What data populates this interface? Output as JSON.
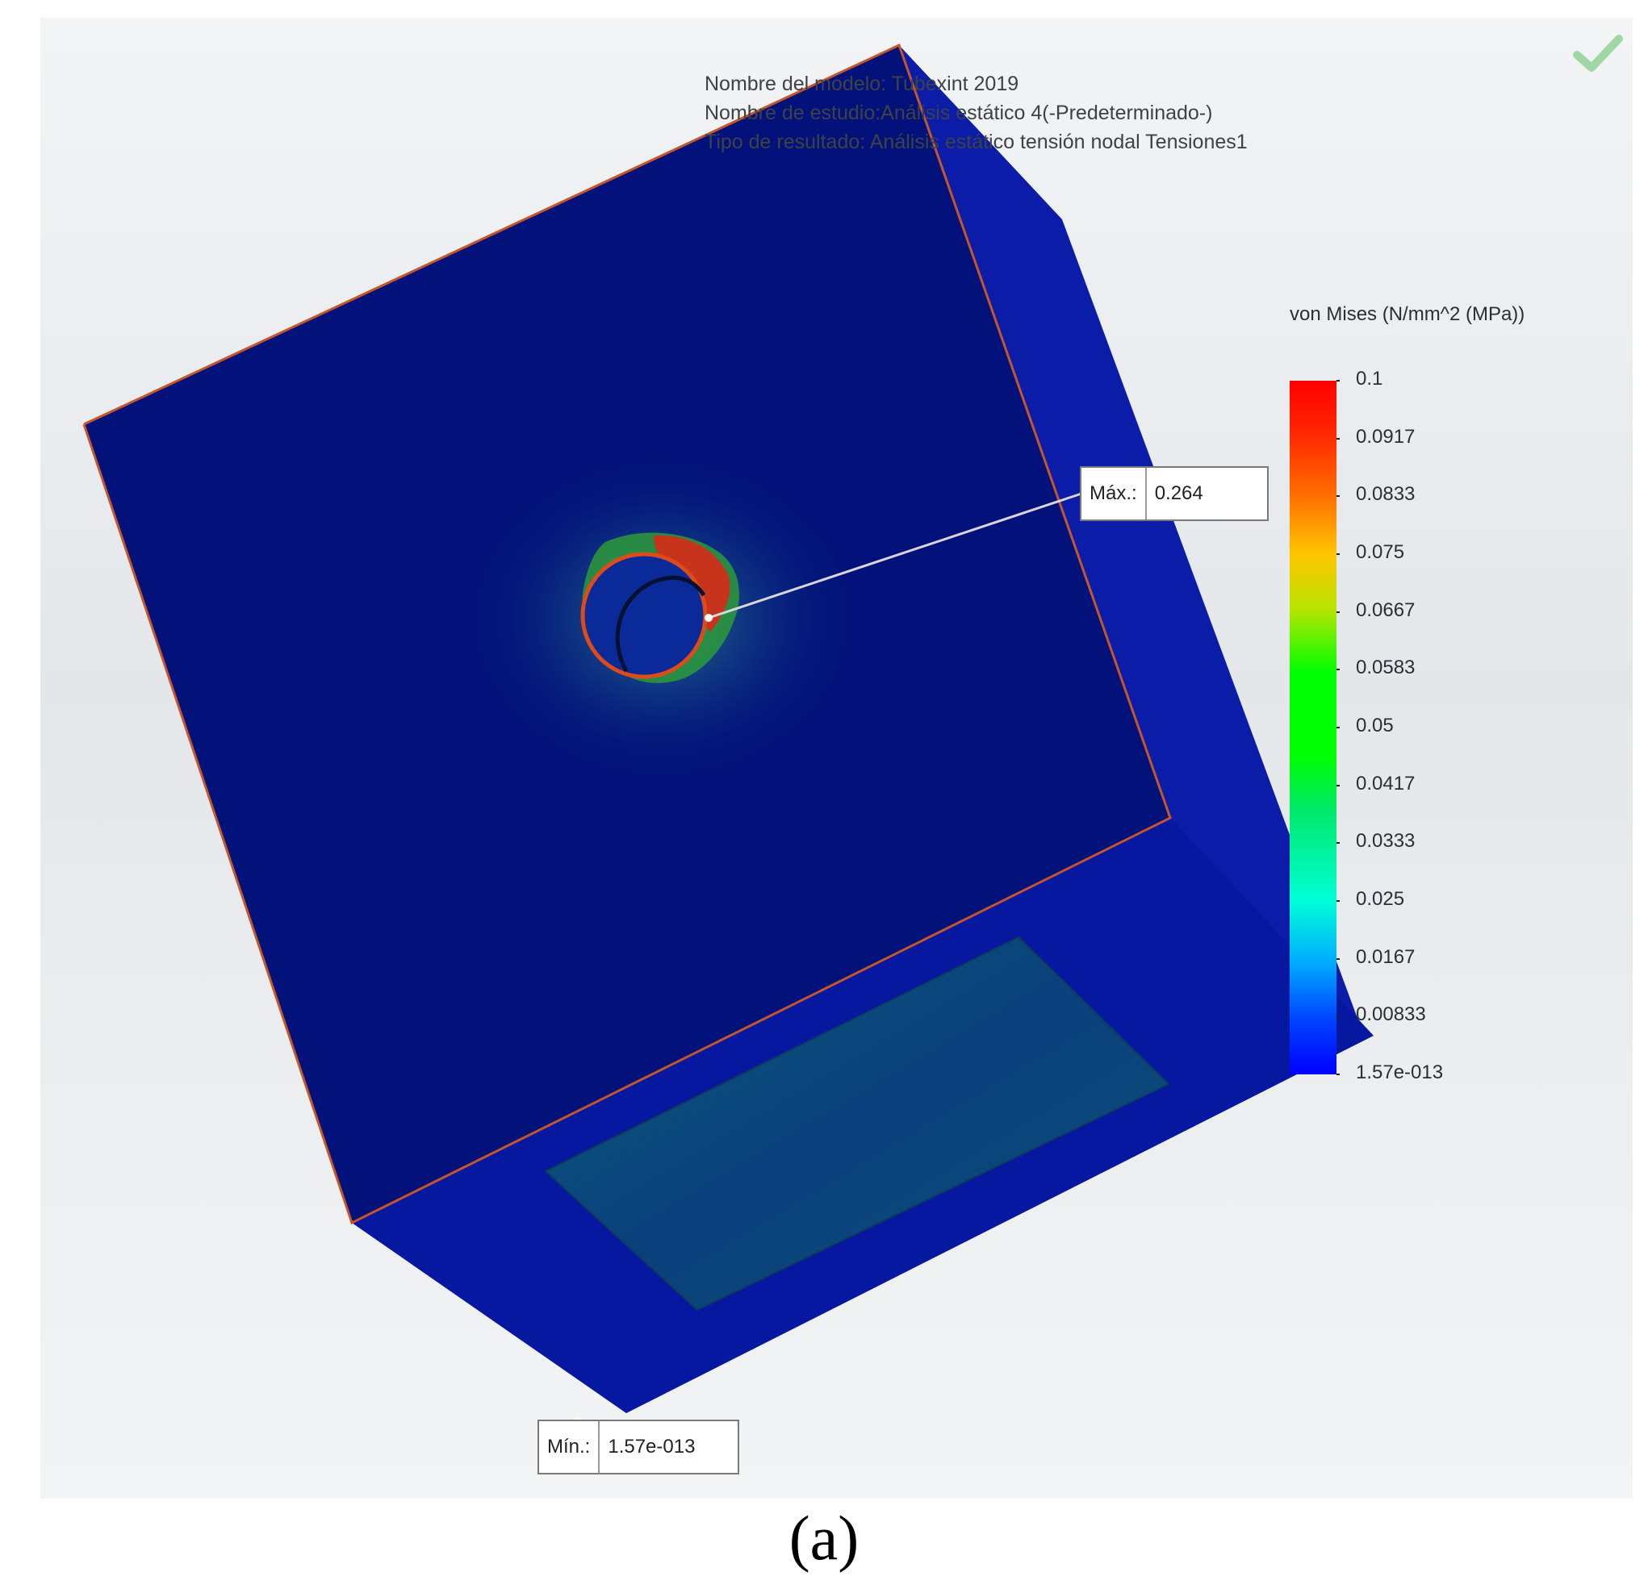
{
  "header": {
    "model_name": "Nombre del modelo: Tubexint 2019",
    "study_name": "Nombre de estudio:Análisis estático 4(-Predeterminado-)",
    "result_type": "Tipo de resultado: Análisis estático tensión nodal Tensiones1"
  },
  "status_icon": "check-icon",
  "legend": {
    "title": "von Mises (N/mm^2 (MPa))",
    "ticks": [
      "0.1",
      "0.0917",
      "0.0833",
      "0.075",
      "0.0667",
      "0.0583",
      "0.05",
      "0.0417",
      "0.0333",
      "0.025",
      "0.0167",
      "0.00833",
      "1.57e-013"
    ],
    "colors": [
      "#ff0000",
      "#ff6a00",
      "#ffc400",
      "#00ff00",
      "#00ffd8",
      "#00aaff",
      "#0000ff"
    ]
  },
  "max_callout": {
    "label": "Máx.:",
    "value": "0.264"
  },
  "min_callout": {
    "label": "Mín.:",
    "value": "1.57e-013"
  },
  "model_colors": {
    "body": "#02127a",
    "side": "#0a1ca8",
    "edge": "#c4562a"
  },
  "caption": "(a)"
}
